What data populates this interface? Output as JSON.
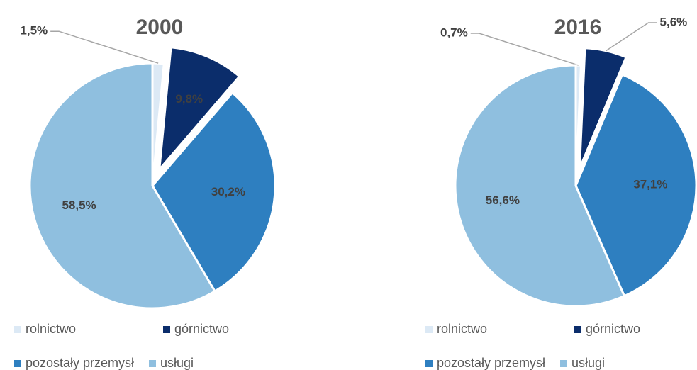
{
  "chart_data": [
    {
      "type": "pie",
      "title": "2000",
      "categories": [
        "rolnictwo",
        "górnictwo",
        "pozostały przemysł",
        "usługi"
      ],
      "values": [
        1.5,
        9.8,
        30.2,
        58.5
      ],
      "value_labels": [
        "1,5%",
        "9,8%",
        "30,2%",
        "58,5%"
      ],
      "colors": [
        "#dce9f5",
        "#0b2d6b",
        "#2e7fc0",
        "#8fbfdf"
      ],
      "explode": [
        false,
        true,
        false,
        false
      ]
    },
    {
      "type": "pie",
      "title": "2016",
      "categories": [
        "rolnictwo",
        "górnictwo",
        "pozostały przemysł",
        "usługi"
      ],
      "values": [
        0.7,
        5.6,
        37.1,
        56.6
      ],
      "value_labels": [
        "0,7%",
        "5,6%",
        "37,1%",
        "56,6%"
      ],
      "colors": [
        "#dce9f5",
        "#0b2d6b",
        "#2e7fc0",
        "#8fbfdf"
      ],
      "explode": [
        false,
        true,
        false,
        false
      ]
    }
  ]
}
